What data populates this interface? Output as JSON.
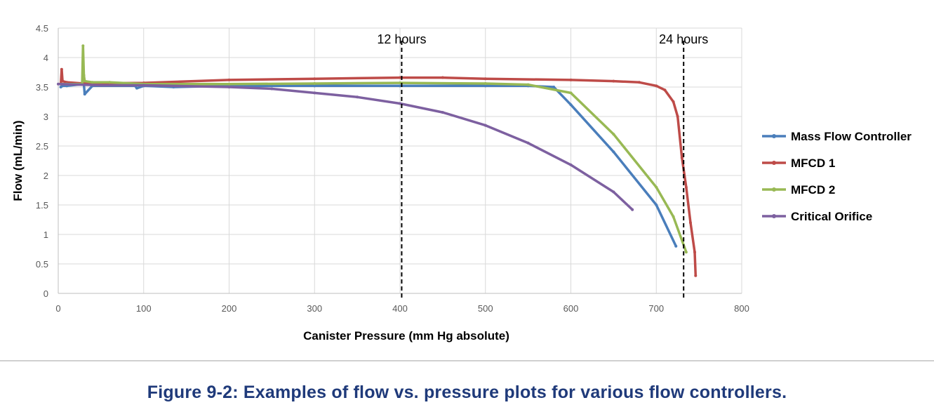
{
  "chart_data": {
    "type": "line",
    "ylabel": "Flow (mL/min)",
    "xlabel": "Canister Pressure (mm Hg absolute)",
    "xlim": [
      0,
      800
    ],
    "ylim": [
      0,
      4.5
    ],
    "xticks": [
      "0",
      "100",
      "200",
      "300",
      "400",
      "500",
      "600",
      "700",
      "800"
    ],
    "yticks": [
      "0",
      "0.5",
      "1",
      "1.5",
      "2",
      "2.5",
      "3",
      "3.5",
      "4",
      "4.5"
    ],
    "grid": "vertical and horizontal",
    "legend_position": "right",
    "annotations": [
      {
        "label": "12 hours",
        "x": 402
      },
      {
        "label": "24 hours",
        "x": 732
      }
    ],
    "series": [
      {
        "name": "Mass Flow Controller",
        "color": "#4a7ebb",
        "x": [
          3,
          5,
          10,
          30,
          31,
          40,
          90,
          92,
          100,
          135,
          200,
          300,
          400,
          500,
          550,
          580,
          600,
          650,
          700,
          723
        ],
        "y": [
          3.5,
          3.52,
          3.52,
          3.55,
          3.38,
          3.52,
          3.52,
          3.48,
          3.52,
          3.5,
          3.52,
          3.52,
          3.52,
          3.52,
          3.52,
          3.5,
          3.2,
          2.4,
          1.5,
          0.8
        ]
      },
      {
        "name": "MFCD 1",
        "color": "#be4b48",
        "x": [
          3,
          4,
          5,
          10,
          30,
          100,
          200,
          300,
          400,
          450,
          500,
          600,
          650,
          680,
          700,
          710,
          720,
          725,
          730,
          735,
          740,
          745,
          746
        ],
        "y": [
          3.55,
          3.8,
          3.6,
          3.58,
          3.56,
          3.57,
          3.62,
          3.64,
          3.66,
          3.66,
          3.64,
          3.62,
          3.6,
          3.58,
          3.52,
          3.45,
          3.25,
          3.0,
          2.3,
          1.8,
          1.2,
          0.7,
          0.3
        ]
      },
      {
        "name": "MFCD 2",
        "color": "#98b954",
        "x": [
          3,
          10,
          28,
          29,
          30,
          31,
          40,
          60,
          100,
          200,
          300,
          400,
          500,
          550,
          600,
          650,
          700,
          720,
          735
        ],
        "y": [
          3.55,
          3.55,
          3.55,
          4.2,
          3.7,
          3.6,
          3.58,
          3.58,
          3.55,
          3.55,
          3.56,
          3.57,
          3.56,
          3.54,
          3.4,
          2.7,
          1.8,
          1.3,
          0.7
        ]
      },
      {
        "name": "Critical Orifice",
        "color": "#7d60a0",
        "x": [
          0,
          50,
          100,
          200,
          250,
          300,
          350,
          400,
          450,
          500,
          550,
          600,
          650,
          672
        ],
        "y": [
          3.55,
          3.53,
          3.53,
          3.5,
          3.47,
          3.4,
          3.33,
          3.22,
          3.07,
          2.85,
          2.55,
          2.18,
          1.72,
          1.42
        ]
      }
    ]
  },
  "caption": "Figure 9-2:  Examples of flow vs. pressure plots for various flow controllers."
}
